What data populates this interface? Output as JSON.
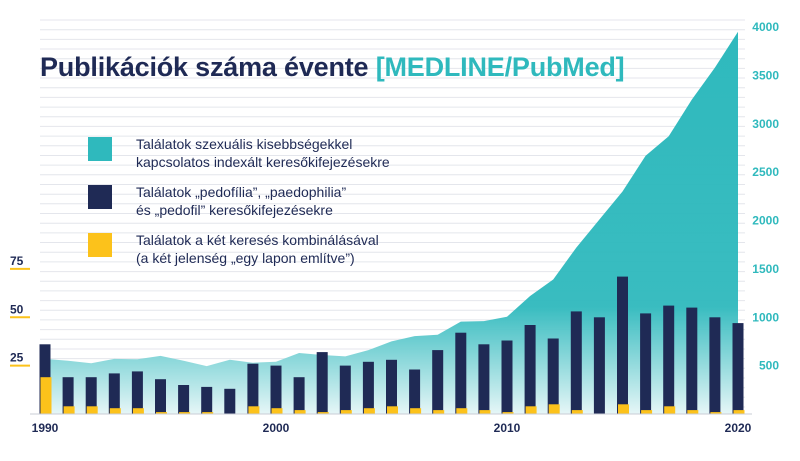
{
  "title": {
    "main": "Publikációk száma évente",
    "accent": "[MEDLINE/PubMed]"
  },
  "legend": [
    {
      "text": "Találatok szexuális kisebbségekkel\nkapcsolatos indexált keresőkifejezésekre",
      "color": "#2fb9bd"
    },
    {
      "text": "Találatok „pedofília”, „paedophilia”\nés „pedofil” keresőkifejezésekre",
      "color": "#1f2a55"
    },
    {
      "text": "Találatok a két keresés kombinálásával\n(a két jelenség „egy lapon említve”)",
      "color": "#fcc21b"
    }
  ],
  "chart_data": {
    "type": "bar",
    "x": [
      1990,
      1991,
      1992,
      1993,
      1994,
      1995,
      1996,
      1997,
      1998,
      1999,
      2000,
      2001,
      2002,
      2003,
      2004,
      2005,
      2006,
      2007,
      2008,
      2009,
      2010,
      2011,
      2012,
      2013,
      2014,
      2015,
      2016,
      2017,
      2018,
      2019,
      2020
    ],
    "x_ticks": [
      "1990",
      "2000",
      "2010",
      "2020"
    ],
    "left_axis": {
      "ticks": [
        "25",
        "50",
        "75"
      ],
      "range": [
        0,
        100
      ]
    },
    "right_axis": {
      "ticks": [
        "500",
        "1000",
        "1500",
        "2000",
        "2500",
        "3000",
        "3500",
        "4000"
      ],
      "range": [
        0,
        4000
      ]
    },
    "series": [
      {
        "name": "Találatok szexuális kisebbségekkel kapcsolatos indexált keresőkifejezésekre",
        "type": "area",
        "axis": "right",
        "values": [
          570,
          550,
          525,
          570,
          565,
          600,
          550,
          495,
          560,
          530,
          540,
          630,
          610,
          595,
          660,
          750,
          805,
          820,
          955,
          960,
          1005,
          1220,
          1390,
          1720,
          2010,
          2300,
          2670,
          2870,
          3250,
          3580,
          3950
        ]
      },
      {
        "name": "Találatok „pedofília”, „paedophilia” és „pedofil” keresőkifejezésekre",
        "type": "bar",
        "axis": "left",
        "values": [
          36,
          19,
          19,
          21,
          22,
          18,
          15,
          14,
          13,
          26,
          25,
          19,
          32,
          25,
          27,
          28,
          23,
          33,
          42,
          36,
          38,
          46,
          39,
          53,
          50,
          71,
          52,
          56,
          55,
          50,
          47
        ]
      },
      {
        "name": "Találatok a két keresés kombinálásával (a két jelenség „egy lapon említve”)",
        "type": "bar",
        "axis": "left",
        "values": [
          19,
          4,
          4,
          3,
          3,
          1,
          1,
          1,
          0,
          4,
          3,
          2,
          1,
          2,
          3,
          4,
          3,
          2,
          3,
          2,
          1,
          4,
          5,
          2,
          0,
          5,
          2,
          4,
          2,
          1,
          2
        ]
      }
    ],
    "grid": true
  }
}
